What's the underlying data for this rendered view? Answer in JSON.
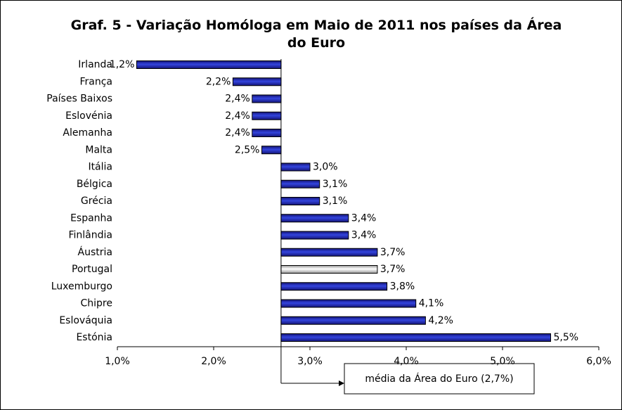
{
  "chart_data": {
    "type": "hbar",
    "title": "Graf. 5 - Variação Homóloga em Maio de 2011 nos países da Área do Euro",
    "categories": [
      "Irlanda",
      "França",
      "Países Baixos",
      "Eslovénia",
      "Alemanha",
      "Malta",
      "Itália",
      "Bélgica",
      "Grécia",
      "Espanha",
      "Finlândia",
      "Áustria",
      "Portugal",
      "Luxemburgo",
      "Chipre",
      "Eslováquia",
      "Estónia"
    ],
    "values": [
      1.2,
      2.2,
      2.4,
      2.4,
      2.4,
      2.5,
      3.0,
      3.1,
      3.1,
      3.4,
      3.4,
      3.7,
      3.7,
      3.8,
      4.1,
      4.2,
      5.5
    ],
    "value_labels": [
      "1,2%",
      "2,2%",
      "2,4%",
      "2,4%",
      "2,4%",
      "2,5%",
      "3,0%",
      "3,1%",
      "3,1%",
      "3,4%",
      "3,4%",
      "3,7%",
      "3,7%",
      "3,8%",
      "4,1%",
      "4,2%",
      "5,5%"
    ],
    "colors": [
      "#3344dd",
      "#3344dd",
      "#3344dd",
      "#3344dd",
      "#3344dd",
      "#3344dd",
      "#3344dd",
      "#3344dd",
      "#3344dd",
      "#3344dd",
      "#3344dd",
      "#3344dd",
      "#c8c8c8",
      "#3344dd",
      "#3344dd",
      "#3344dd",
      "#3344dd"
    ],
    "base": 2.7,
    "xlim": [
      1.0,
      6.0
    ],
    "xticks": [
      {
        "value": 1.0,
        "label": "1,0%"
      },
      {
        "value": 2.0,
        "label": "2,0%"
      },
      {
        "value": 3.0,
        "label": "3,0%"
      },
      {
        "value": 4.0,
        "label": "4,0%"
      },
      {
        "value": 5.0,
        "label": "5,0%"
      },
      {
        "value": 6.0,
        "label": "6,0%"
      }
    ],
    "annotation": "média da Área do Euro (2,7%)"
  }
}
